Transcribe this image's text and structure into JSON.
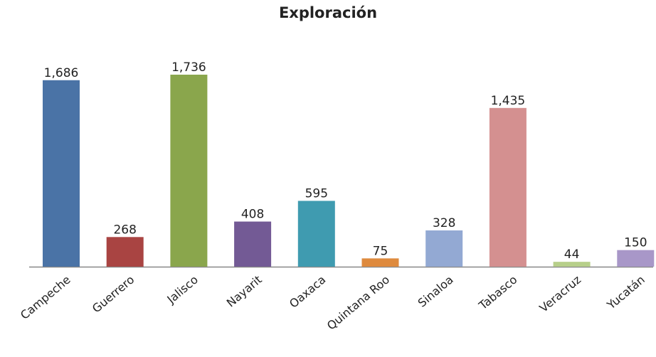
{
  "chart_data": {
    "type": "bar",
    "title": "Exploración",
    "xlabel": "",
    "ylabel": "",
    "categories": [
      "Campeche",
      "Guerrero",
      "Jalisco",
      "Nayarit",
      "Oaxaca",
      "Quintana Roo",
      "Sinaloa",
      "Tabasco",
      "Veracruz",
      "Yucatán"
    ],
    "values": [
      1686,
      268,
      1736,
      408,
      595,
      75,
      328,
      1435,
      44,
      150
    ],
    "data_labels": [
      "1,686",
      "268",
      "1,736",
      "408",
      "595",
      "75",
      "328",
      "1,435",
      "44",
      "150"
    ],
    "bar_colors": [
      "#4a73a6",
      "#a94442",
      "#8aa64c",
      "#735a95",
      "#3f9bb0",
      "#de8a3e",
      "#93a9d3",
      "#d49090",
      "#b7cf8a",
      "#a897c8"
    ],
    "ylim": [
      0,
      1736
    ],
    "grid": false,
    "legend": "none"
  }
}
